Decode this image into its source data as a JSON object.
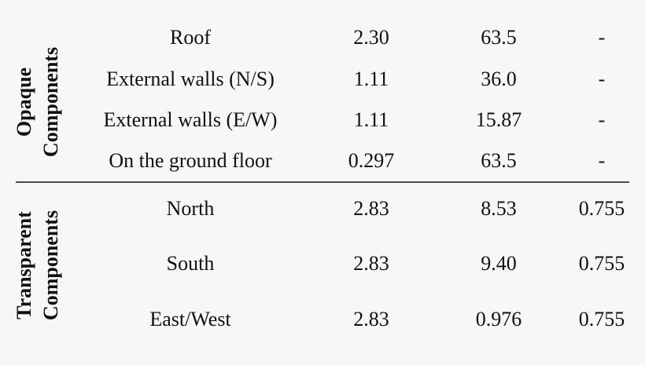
{
  "table": {
    "groups": [
      {
        "label": [
          "Opaque",
          "Components"
        ],
        "rows": [
          [
            "Roof",
            "2.30",
            "63.5",
            "-"
          ],
          [
            "External walls (N/S)",
            "1.11",
            "36.0",
            "-"
          ],
          [
            "External walls (E/W)",
            "1.11",
            "15.87",
            "-"
          ],
          [
            "On the ground floor",
            "0.297",
            "63.5",
            "-"
          ]
        ]
      },
      {
        "label": [
          "Transparent",
          "Components"
        ],
        "rows": [
          [
            "North",
            "2.83",
            "8.53",
            "0.755"
          ],
          [
            "South",
            "2.83",
            "9.40",
            "0.755"
          ],
          [
            "East/West",
            "2.83",
            "0.976",
            "0.755"
          ]
        ]
      }
    ]
  }
}
